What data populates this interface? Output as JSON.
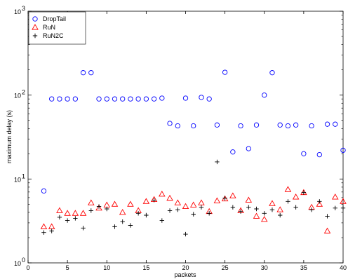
{
  "chart_data": {
    "type": "scatter",
    "xlabel": "packets",
    "ylabel": "maximum delay (s)",
    "xlim": [
      0,
      40
    ],
    "ylim": [
      1,
      1000
    ],
    "yscale": "log",
    "x_ticks": [
      0,
      5,
      10,
      15,
      20,
      25,
      30,
      35,
      40
    ],
    "y_ticks": [
      {
        "value": 1,
        "base": "10",
        "exp": "0"
      },
      {
        "value": 10,
        "base": "10",
        "exp": "1"
      },
      {
        "value": 100,
        "base": "10",
        "exp": "2"
      },
      {
        "value": 1000,
        "base": "10",
        "exp": "3"
      }
    ],
    "grid": false,
    "legend_position": "top-left",
    "series": [
      {
        "name": "DropTail",
        "marker": "circle",
        "color": "#0000ff",
        "points": [
          [
            2,
            7.2
          ],
          [
            3,
            90
          ],
          [
            4,
            90
          ],
          [
            5,
            90
          ],
          [
            6,
            90
          ],
          [
            7,
            185
          ],
          [
            8,
            185
          ],
          [
            9,
            90
          ],
          [
            10,
            90
          ],
          [
            11,
            90
          ],
          [
            12,
            90
          ],
          [
            13,
            90
          ],
          [
            14,
            90
          ],
          [
            15,
            90
          ],
          [
            16,
            90
          ],
          [
            17,
            92
          ],
          [
            18,
            46
          ],
          [
            19,
            43
          ],
          [
            20,
            92
          ],
          [
            21,
            43
          ],
          [
            22,
            94
          ],
          [
            23,
            90
          ],
          [
            24,
            44
          ],
          [
            25,
            187
          ],
          [
            26,
            21
          ],
          [
            27,
            43
          ],
          [
            28,
            23
          ],
          [
            29,
            44
          ],
          [
            30,
            100
          ],
          [
            31,
            185
          ],
          [
            32,
            44
          ],
          [
            33,
            43
          ],
          [
            34,
            44
          ],
          [
            35,
            20
          ],
          [
            36,
            43
          ],
          [
            37,
            19.5
          ],
          [
            38,
            45
          ],
          [
            39,
            45
          ],
          [
            40,
            22
          ]
        ]
      },
      {
        "name": "RuN",
        "marker": "triangle",
        "color": "#ff0000",
        "points": [
          [
            2,
            2.7
          ],
          [
            3,
            2.7
          ],
          [
            4,
            4.2
          ],
          [
            5,
            3.9
          ],
          [
            6,
            3.9
          ],
          [
            7,
            3.9
          ],
          [
            8,
            5.2
          ],
          [
            9,
            4.5
          ],
          [
            10,
            4.9
          ],
          [
            11,
            5.0
          ],
          [
            12,
            4.0
          ],
          [
            13,
            5.0
          ],
          [
            14,
            4.2
          ],
          [
            15,
            5.4
          ],
          [
            16,
            5.7
          ],
          [
            17,
            6.6
          ],
          [
            18,
            5.9
          ],
          [
            19,
            5.2
          ],
          [
            20,
            4.7
          ],
          [
            21,
            4.9
          ],
          [
            22,
            5.2
          ],
          [
            23,
            4.1
          ],
          [
            24,
            5.5
          ],
          [
            25,
            5.8
          ],
          [
            26,
            6.3
          ],
          [
            27,
            4.2
          ],
          [
            28,
            5.6
          ],
          [
            29,
            3.6
          ],
          [
            30,
            3.3
          ],
          [
            31,
            5.1
          ],
          [
            32,
            4.3
          ],
          [
            33,
            7.5
          ],
          [
            34,
            6.1
          ],
          [
            35,
            6.9
          ],
          [
            36,
            4.6
          ],
          [
            37,
            5.0
          ],
          [
            38,
            2.4
          ],
          [
            39,
            6.1
          ],
          [
            40,
            5.4
          ]
        ]
      },
      {
        "name": "RuN2C",
        "marker": "plus",
        "color": "#000000",
        "points": [
          [
            2,
            2.3
          ],
          [
            3,
            2.4
          ],
          [
            4,
            3.5
          ],
          [
            5,
            3.2
          ],
          [
            6,
            3.4
          ],
          [
            7,
            2.6
          ],
          [
            8,
            4.2
          ],
          [
            9,
            4.7
          ],
          [
            10,
            4.4
          ],
          [
            11,
            2.7
          ],
          [
            12,
            3.1
          ],
          [
            13,
            2.8
          ],
          [
            14,
            3.9
          ],
          [
            15,
            3.7
          ],
          [
            16,
            5.6
          ],
          [
            17,
            3.2
          ],
          [
            18,
            4.2
          ],
          [
            19,
            4.3
          ],
          [
            20,
            2.2
          ],
          [
            21,
            3.8
          ],
          [
            22,
            4.6
          ],
          [
            23,
            3.9
          ],
          [
            24,
            16
          ],
          [
            25,
            5.9
          ],
          [
            26,
            4.6
          ],
          [
            27,
            4.1
          ],
          [
            28,
            4.6
          ],
          [
            29,
            4.4
          ],
          [
            30,
            3.9
          ],
          [
            31,
            4.3
          ],
          [
            32,
            3.7
          ],
          [
            33,
            5.4
          ],
          [
            34,
            4.6
          ],
          [
            35,
            6.9
          ],
          [
            36,
            4.3
          ],
          [
            37,
            5.4
          ],
          [
            38,
            3.6
          ],
          [
            39,
            4.5
          ],
          [
            40,
            4.5
          ]
        ]
      }
    ]
  }
}
